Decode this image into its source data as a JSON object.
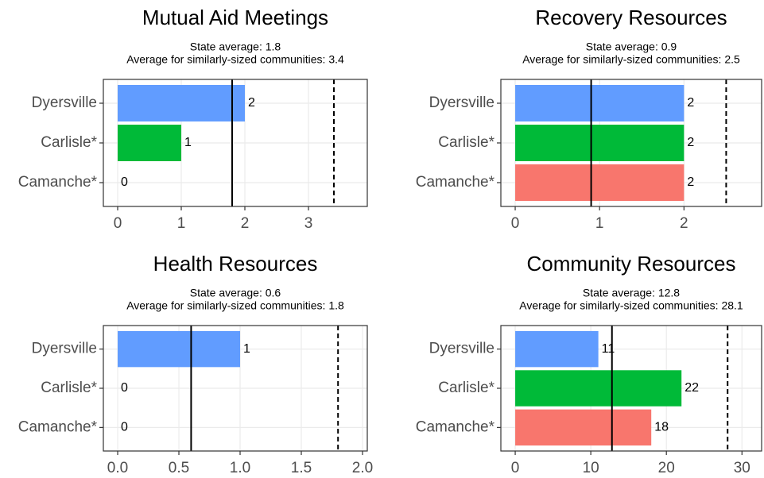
{
  "chart_data": [
    {
      "type": "bar",
      "orientation": "horizontal",
      "title": "Mutual Aid Meetings",
      "annotations": [
        {
          "text": "State average: 1.8",
          "value": 1.8,
          "line": "solid"
        },
        {
          "text": "Average for similarly-sized communities: 3.4",
          "value": 3.4,
          "line": "dashed"
        }
      ],
      "categories": [
        "Dyersville",
        "Carlisle*",
        "Camanche*"
      ],
      "values": [
        2,
        1,
        0
      ],
      "colors": [
        "#619CFF",
        "#00BA38",
        "#F8766D"
      ],
      "xlim": [
        -0.225,
        3.925
      ],
      "xticks": [
        0,
        1,
        2,
        3
      ],
      "grid": true
    },
    {
      "type": "bar",
      "orientation": "horizontal",
      "title": "Recovery Resources",
      "annotations": [
        {
          "text": "State average: 0.9",
          "value": 0.9,
          "line": "solid"
        },
        {
          "text": "Average for similarly-sized communities: 2.5",
          "value": 2.5,
          "line": "dashed"
        }
      ],
      "categories": [
        "Dyersville",
        "Carlisle*",
        "Camanche*"
      ],
      "values": [
        2,
        2,
        2
      ],
      "colors": [
        "#619CFF",
        "#00BA38",
        "#F8766D"
      ],
      "xlim": [
        -0.17,
        2.92
      ],
      "xticks": [
        0,
        1,
        2
      ],
      "grid": true
    },
    {
      "type": "bar",
      "orientation": "horizontal",
      "title": "Health Resources",
      "annotations": [
        {
          "text": "State average: 0.6",
          "value": 0.6,
          "line": "solid"
        },
        {
          "text": "Average for similarly-sized communities: 1.8",
          "value": 1.8,
          "line": "dashed"
        }
      ],
      "categories": [
        "Dyersville",
        "Carlisle*",
        "Camanche*"
      ],
      "values": [
        1,
        0,
        0
      ],
      "colors": [
        "#619CFF",
        "#00BA38",
        "#F8766D"
      ],
      "xlim": [
        -0.117,
        2.039
      ],
      "xticks": [
        {
          "value": 0,
          "label": "0.0"
        },
        0.5,
        {
          "value": 1,
          "label": "1.0"
        },
        1.5,
        {
          "value": 2,
          "label": "2.0"
        }
      ],
      "grid": true
    },
    {
      "type": "bar",
      "orientation": "horizontal",
      "title": "Community Resources",
      "annotations": [
        {
          "text": "State average: 12.8",
          "value": 12.8,
          "line": "solid"
        },
        {
          "text": "Average for similarly-sized communities: 28.1",
          "value": 28.1,
          "line": "dashed"
        }
      ],
      "categories": [
        "Dyersville",
        "Carlisle*",
        "Camanche*"
      ],
      "values": [
        11,
        22,
        18
      ],
      "colors": [
        "#619CFF",
        "#00BA38",
        "#F8766D"
      ],
      "xlim": [
        -1.9,
        32.6
      ],
      "xticks": [
        0,
        10,
        20,
        30
      ],
      "grid": true
    }
  ]
}
